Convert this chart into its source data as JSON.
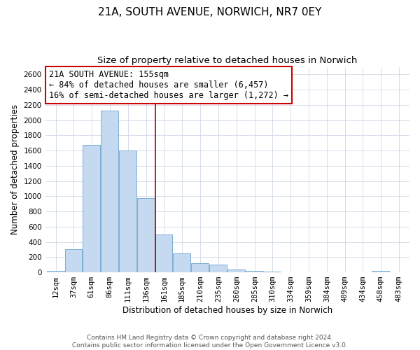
{
  "title": "21A, SOUTH AVENUE, NORWICH, NR7 0EY",
  "subtitle": "Size of property relative to detached houses in Norwich",
  "xlabel": "Distribution of detached houses by size in Norwich",
  "ylabel": "Number of detached properties",
  "footer_line1": "Contains HM Land Registry data © Crown copyright and database right 2024.",
  "footer_line2": "Contains public sector information licensed under the Open Government Licence v3.0.",
  "annotation_title": "21A SOUTH AVENUE: 155sqm",
  "annotation_line1": "← 84% of detached houses are smaller (6,457)",
  "annotation_line2": "16% of semi-detached houses are larger (1,272) →",
  "bar_left_edges": [
    12,
    37,
    61,
    86,
    111,
    136,
    161,
    185,
    210,
    235,
    260,
    285,
    310,
    334,
    359,
    384,
    409,
    434,
    458,
    483
  ],
  "bar_widths": [
    25,
    24,
    25,
    25,
    25,
    25,
    24,
    25,
    25,
    25,
    25,
    25,
    24,
    25,
    25,
    25,
    25,
    24,
    25,
    25
  ],
  "bar_heights": [
    20,
    300,
    1675,
    2130,
    1600,
    975,
    500,
    250,
    120,
    100,
    35,
    15,
    10,
    5,
    5,
    5,
    3,
    2,
    20,
    2
  ],
  "bar_color": "#c5d9f0",
  "bar_edge_color": "#7aafd4",
  "vline_x": 161,
  "vline_color": "#aa0000",
  "ylim": [
    0,
    2700
  ],
  "yticks": [
    0,
    200,
    400,
    600,
    800,
    1000,
    1200,
    1400,
    1600,
    1800,
    2000,
    2200,
    2400,
    2600
  ],
  "annotation_box_edge_color": "#cc0000",
  "annotation_box_facecolor": "#ffffff",
  "background_color": "#ffffff",
  "grid_color": "#d0d8e8",
  "title_fontsize": 11,
  "subtitle_fontsize": 9.5,
  "axis_label_fontsize": 8.5,
  "tick_fontsize": 7.5,
  "annotation_fontsize": 8.5,
  "footer_fontsize": 6.5
}
